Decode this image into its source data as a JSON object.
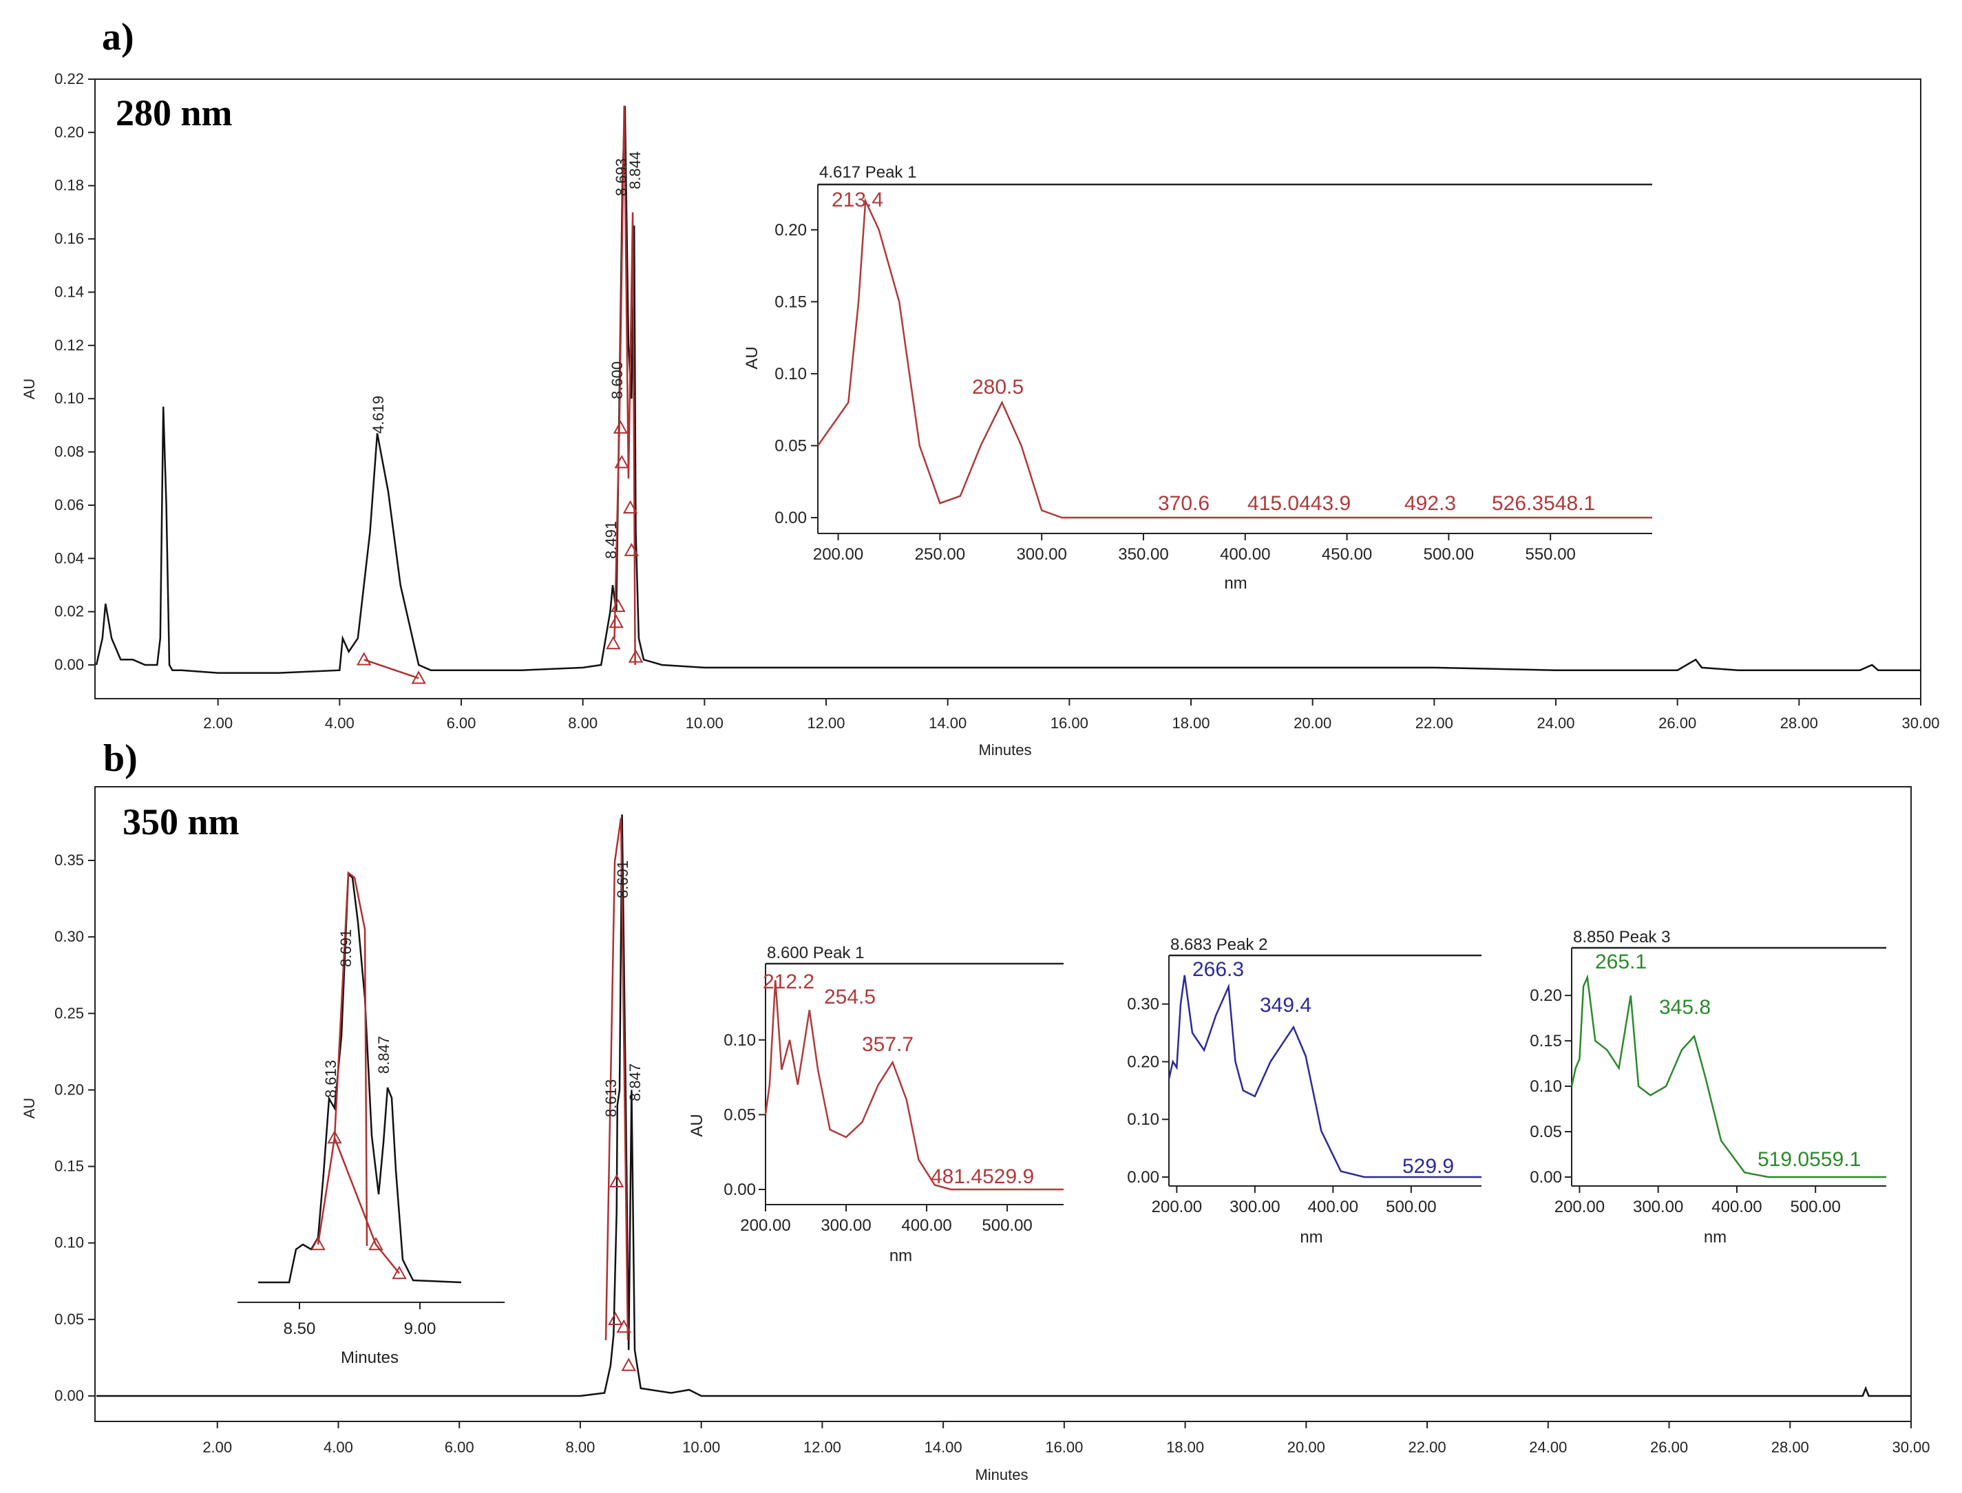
{
  "panels": [
    {
      "panel_label": "a)",
      "wavelength_label": "280 nm",
      "xlabel": "Minutes",
      "ylabel": "AU",
      "x_ticks": [
        "2.00",
        "4.00",
        "6.00",
        "8.00",
        "10.00",
        "12.00",
        "14.00",
        "16.00",
        "18.00",
        "20.00",
        "22.00",
        "24.00",
        "26.00",
        "28.00",
        "30.00"
      ],
      "y_ticks": [
        "0.00",
        "0.02",
        "0.04",
        "0.06",
        "0.08",
        "0.10",
        "0.12",
        "0.14",
        "0.16",
        "0.18",
        "0.20",
        "0.22"
      ],
      "peak_labels": [
        "4.619",
        "8.491",
        "8.600",
        "8.693",
        "8.844"
      ],
      "inset": {
        "title": "4.617 Peak 1",
        "xlabel": "nm",
        "ylabel": "AU",
        "x_ticks": [
          "200.00",
          "250.00",
          "300.00",
          "350.00",
          "400.00",
          "450.00",
          "500.00",
          "550.00"
        ],
        "y_ticks": [
          "0.00",
          "0.05",
          "0.10",
          "0.15",
          "0.20"
        ],
        "maxima_labels": [
          "213.4",
          "280.5"
        ],
        "baseline_labels": [
          "370.6",
          "415.0443.9",
          "492.3",
          "526.3548.1"
        ]
      }
    },
    {
      "panel_label": "b)",
      "wavelength_label": "350 nm",
      "xlabel": "Minutes",
      "ylabel": "AU",
      "x_ticks": [
        "2.00",
        "4.00",
        "6.00",
        "8.00",
        "10.00",
        "12.00",
        "14.00",
        "16.00",
        "18.00",
        "20.00",
        "22.00",
        "24.00",
        "26.00",
        "28.00",
        "30.00"
      ],
      "y_ticks": [
        "0.00",
        "0.05",
        "0.10",
        "0.15",
        "0.20",
        "0.25",
        "0.30",
        "0.35"
      ],
      "peak_labels": [
        "8.613",
        "8.691",
        "8.847"
      ],
      "zoom_inset": {
        "xlabel": "Minutes",
        "x_ticks": [
          "8.50",
          "9.00"
        ],
        "peak_labels": [
          "8.613",
          "8.691",
          "8.847"
        ]
      },
      "spectra": [
        {
          "title": "8.600 Peak 1",
          "xlabel": "nm",
          "ylabel": "AU",
          "x_ticks": [
            "200.00",
            "300.00",
            "400.00",
            "500.00"
          ],
          "y_ticks": [
            "0.00",
            "0.05",
            "0.10"
          ],
          "maxima_labels": [
            "212.2",
            "254.5",
            "357.7"
          ],
          "baseline_labels": [
            "481.4529.9"
          ]
        },
        {
          "title": "8.683 Peak 2",
          "xlabel": "nm",
          "x_ticks": [
            "200.00",
            "300.00",
            "400.00",
            "500.00"
          ],
          "y_ticks": [
            "0.00",
            "0.10",
            "0.20",
            "0.30"
          ],
          "maxima_labels": [
            "266.3",
            "349.4"
          ],
          "baseline_labels": [
            "529.9"
          ]
        },
        {
          "title": "8.850 Peak 3",
          "xlabel": "nm",
          "x_ticks": [
            "200.00",
            "300.00",
            "400.00",
            "500.00"
          ],
          "y_ticks": [
            "0.00",
            "0.05",
            "0.10",
            "0.15",
            "0.20"
          ],
          "maxima_labels": [
            "265.1",
            "345.8"
          ],
          "baseline_labels": [
            "519.0559.1"
          ]
        }
      ]
    }
  ],
  "colors": {
    "trace": "#111111",
    "integration": "#b03030",
    "spectrum_peak1": "#b03a3a",
    "spectrum_peak2": "#2a2a9a",
    "spectrum_peak3": "#2a8a2a"
  },
  "chart_data": [
    {
      "type": "line",
      "title": "280 nm",
      "xlabel": "Minutes",
      "ylabel": "AU",
      "xlim": [
        0,
        30
      ],
      "ylim": [
        -0.01,
        0.22
      ],
      "series": [
        {
          "x": [
            0.0,
            0.1,
            0.15,
            0.25,
            0.4,
            0.6,
            0.8,
            1.0,
            1.05,
            1.1,
            1.15,
            1.2,
            1.25,
            1.4,
            2.0,
            3.0,
            4.0,
            4.05,
            4.15,
            4.3,
            4.5,
            4.619,
            4.8,
            5.0,
            5.2,
            5.3,
            5.5,
            6.0,
            7.0,
            8.0,
            8.3,
            8.45,
            8.491,
            8.55,
            8.6,
            8.65,
            8.69,
            8.693,
            8.75,
            8.8,
            8.844,
            8.87,
            8.92,
            9.0,
            9.3,
            10,
            12,
            14,
            16,
            18,
            20,
            22,
            24,
            26,
            26.3,
            26.4,
            27,
            28,
            29,
            29.2,
            29.3,
            30
          ],
          "y": [
            0.0,
            0.01,
            0.023,
            0.01,
            0.002,
            0.002,
            0.0,
            0.0,
            0.01,
            0.097,
            0.06,
            0.0,
            -0.002,
            -0.002,
            -0.003,
            -0.003,
            -0.002,
            0.01,
            0.005,
            0.01,
            0.05,
            0.087,
            0.065,
            0.03,
            0.01,
            0.0,
            -0.002,
            -0.002,
            -0.002,
            -0.001,
            0.0,
            0.02,
            0.03,
            0.02,
            0.1,
            0.18,
            0.21,
            0.208,
            0.12,
            0.1,
            0.165,
            0.05,
            0.01,
            0.002,
            0.0,
            -0.001,
            -0.001,
            -0.001,
            -0.001,
            -0.001,
            -0.001,
            -0.001,
            -0.002,
            -0.002,
            0.002,
            -0.001,
            -0.002,
            -0.002,
            -0.002,
            0.0,
            -0.002,
            -0.002
          ]
        }
      ]
    },
    {
      "type": "line",
      "title": "4.617 Peak 1",
      "xlabel": "nm",
      "ylabel": "AU",
      "xlim": [
        190,
        600
      ],
      "ylim": [
        0.0,
        0.22
      ],
      "series": [
        {
          "x": [
            190,
            195,
            200,
            205,
            210,
            213.4,
            220,
            230,
            240,
            250,
            260,
            270,
            280.5,
            290,
            300,
            310,
            350,
            400,
            450,
            500,
            550,
            600
          ],
          "y": [
            0.05,
            0.06,
            0.07,
            0.08,
            0.15,
            0.22,
            0.2,
            0.15,
            0.05,
            0.01,
            0.015,
            0.05,
            0.08,
            0.05,
            0.005,
            0.0,
            0.0,
            0.0,
            0.0,
            0.0,
            0.0,
            0.0
          ]
        }
      ]
    },
    {
      "type": "line",
      "title": "350 nm",
      "xlabel": "Minutes",
      "ylabel": "AU",
      "xlim": [
        0,
        30
      ],
      "ylim": [
        -0.02,
        0.38
      ],
      "series": [
        {
          "x": [
            0.0,
            2.0,
            4.0,
            6.0,
            7.0,
            8.0,
            8.4,
            8.5,
            8.55,
            8.6,
            8.613,
            8.65,
            8.691,
            8.75,
            8.8,
            8.847,
            8.9,
            9.0,
            9.5,
            9.8,
            10.0,
            12,
            14,
            16,
            18,
            20,
            22,
            24,
            26,
            28,
            29.2,
            29.25,
            29.3,
            30
          ],
          "y": [
            0.0,
            0.0,
            0.0,
            0.0,
            0.0,
            0.0,
            0.002,
            0.02,
            0.04,
            0.12,
            0.19,
            0.2,
            0.38,
            0.2,
            0.03,
            0.2,
            0.03,
            0.005,
            0.002,
            0.004,
            0.0,
            0.0,
            0.0,
            0.0,
            0.0,
            0.0,
            0.0,
            0.0,
            0.0,
            0.0,
            0.0,
            0.005,
            0.0,
            0.0
          ]
        }
      ]
    },
    {
      "type": "line",
      "title": "8.600 Peak 1",
      "xlabel": "nm",
      "ylabel": "AU",
      "xlim": [
        200,
        570
      ],
      "ylim": [
        0.0,
        0.145
      ],
      "series": [
        {
          "x": [
            200,
            205,
            212.2,
            220,
            230,
            240,
            254.5,
            265,
            280,
            300,
            320,
            340,
            357.7,
            375,
            390,
            410,
            430,
            481.4,
            529.9,
            570
          ],
          "y": [
            0.05,
            0.07,
            0.14,
            0.08,
            0.1,
            0.07,
            0.12,
            0.08,
            0.04,
            0.035,
            0.045,
            0.07,
            0.085,
            0.06,
            0.02,
            0.003,
            0.0,
            0.0,
            0.0,
            0.0
          ]
        }
      ]
    },
    {
      "type": "line",
      "title": "8.683 Peak 2",
      "xlabel": "nm",
      "xlim": [
        190,
        590
      ],
      "ylim": [
        0.0,
        0.37
      ],
      "series": [
        {
          "x": [
            190,
            195,
            200,
            205,
            210,
            220,
            235,
            250,
            266.3,
            275,
            285,
            300,
            320,
            349.4,
            365,
            385,
            410,
            440,
            529.9,
            590
          ],
          "y": [
            0.17,
            0.2,
            0.19,
            0.3,
            0.35,
            0.25,
            0.22,
            0.28,
            0.33,
            0.2,
            0.15,
            0.14,
            0.2,
            0.26,
            0.21,
            0.08,
            0.01,
            0.0,
            0.0,
            0.0
          ]
        }
      ]
    },
    {
      "type": "line",
      "title": "8.850 Peak 3",
      "xlabel": "nm",
      "xlim": [
        190,
        590
      ],
      "ylim": [
        0.0,
        0.235
      ],
      "series": [
        {
          "x": [
            190,
            195,
            200,
            205,
            210,
            220,
            235,
            250,
            265.1,
            275,
            290,
            310,
            330,
            345.8,
            360,
            380,
            410,
            440,
            519.0,
            559.1,
            590
          ],
          "y": [
            0.1,
            0.12,
            0.13,
            0.21,
            0.22,
            0.15,
            0.14,
            0.12,
            0.2,
            0.1,
            0.09,
            0.1,
            0.14,
            0.155,
            0.11,
            0.04,
            0.005,
            0.0,
            0.0,
            0.0,
            0.0
          ]
        }
      ]
    }
  ]
}
